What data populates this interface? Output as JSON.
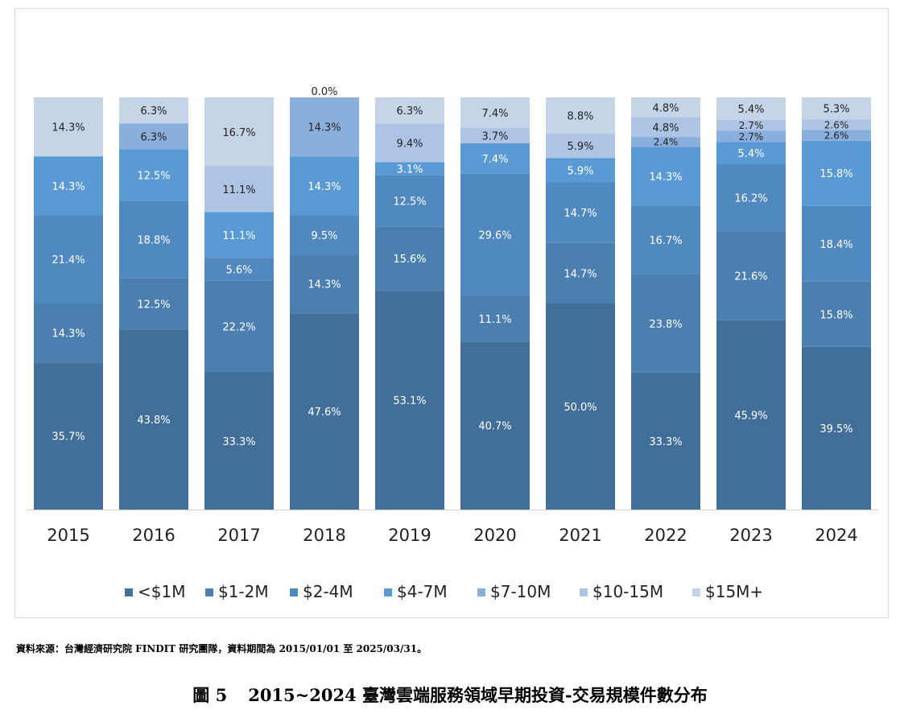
{
  "colors": {
    "<$1M": "#416f99",
    "$1-2M": "#4a7fb0",
    "$2-4M": "#5089c0",
    "$4-7M": "#5a9ad4",
    "$7-10M": "#8aafdc",
    "$10-15M": "#adc4e4",
    "$15M+": "#c6d4e8"
  },
  "chart_data": {
    "type": "bar",
    "stacked": true,
    "percent": true,
    "categories": [
      "2015",
      "2016",
      "2017",
      "2018",
      "2019",
      "2020",
      "2021",
      "2022",
      "2023",
      "2024"
    ],
    "series": [
      {
        "name": "<$1M",
        "values": [
          35.7,
          43.8,
          33.3,
          47.6,
          53.1,
          40.7,
          50.0,
          33.3,
          45.9,
          39.5
        ]
      },
      {
        "name": "$1-2M",
        "values": [
          14.3,
          12.5,
          22.2,
          14.3,
          15.6,
          11.1,
          14.7,
          23.8,
          21.6,
          15.8
        ]
      },
      {
        "name": "$2-4M",
        "values": [
          21.4,
          18.8,
          5.6,
          9.5,
          12.5,
          29.6,
          14.7,
          16.7,
          16.2,
          18.4
        ]
      },
      {
        "name": "$4-7M",
        "values": [
          14.3,
          12.5,
          11.1,
          14.3,
          3.1,
          7.4,
          5.9,
          14.3,
          5.4,
          15.8
        ]
      },
      {
        "name": "$7-10M",
        "values": [
          0,
          6.3,
          0,
          14.3,
          0,
          0,
          0,
          2.4,
          2.7,
          2.6
        ]
      },
      {
        "name": "$10-15M",
        "values": [
          0,
          0,
          11.1,
          0.0,
          9.4,
          3.7,
          5.9,
          4.8,
          2.7,
          2.6
        ]
      },
      {
        "name": "$15M+",
        "values": [
          14.3,
          6.3,
          16.7,
          0,
          6.3,
          7.4,
          8.8,
          4.8,
          5.4,
          5.3
        ]
      }
    ],
    "ylim": [
      0,
      100
    ],
    "legend_position": "bottom",
    "grid": false
  },
  "source_note": "資料來源：台灣經濟研究院 FINDIT 研究團隊，資料期間為 2015/01/01 至 2025/03/31。",
  "caption": {
    "number": "圖 5",
    "title": "2015~2024 臺灣雲端服務領域早期投資-交易規模件數分布"
  }
}
